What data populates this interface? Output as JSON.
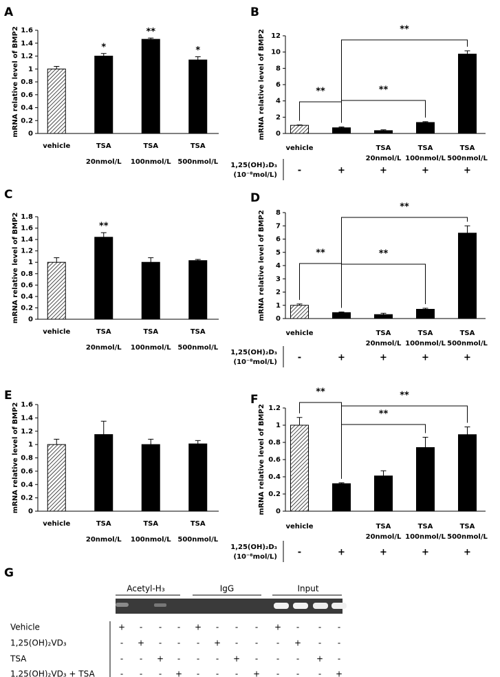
{
  "chart_data": [
    {
      "type": "bar",
      "panel": "A",
      "ylabel": "mRNA relative level of BMP2",
      "categories": [
        [
          "vehicle"
        ],
        [
          "TSA",
          "20nmol/L"
        ],
        [
          "TSA",
          "100nmol/L"
        ],
        [
          "TSA",
          "500nmol/L"
        ]
      ],
      "values": [
        1.0,
        1.2,
        1.46,
        1.14
      ],
      "errors": [
        0.04,
        0.04,
        0.02,
        0.05
      ],
      "significance": [
        null,
        "*",
        "**",
        "*"
      ],
      "ylim": [
        0,
        1.6
      ],
      "yticks": [
        0,
        0.2,
        0.4,
        0.6,
        0.8,
        1,
        1.2,
        1.4,
        1.6
      ]
    },
    {
      "type": "bar",
      "panel": "B",
      "ylabel": "mRNA relative level of BMP2",
      "categories": [
        [
          "vehicle"
        ],
        null,
        [
          "TSA",
          "20nmol/L"
        ],
        [
          "TSA",
          "100nmol/L"
        ],
        [
          "TSA",
          "500nmol/L"
        ]
      ],
      "values": [
        1.0,
        0.7,
        0.35,
        1.35,
        9.75
      ],
      "errors": [
        0.05,
        0.1,
        0.1,
        0.1,
        0.4
      ],
      "comparisons": [
        "**",
        "**",
        "**"
      ],
      "treatment": {
        "label": [
          "1,25(OH)₂D₃",
          "(10⁻⁸mol/L)"
        ],
        "signs": [
          "-",
          "+",
          "+",
          "+",
          "+"
        ]
      },
      "ylim": [
        0,
        12
      ],
      "yticks": [
        0,
        2,
        4,
        6,
        8,
        10,
        12
      ]
    },
    {
      "type": "bar",
      "panel": "C",
      "ylabel": "mRNA relative level of BMP2",
      "categories": [
        [
          "vehicle"
        ],
        [
          "TSA",
          "20nmol/L"
        ],
        [
          "TSA",
          "100nmol/L"
        ],
        [
          "TSA",
          "500nmol/L"
        ]
      ],
      "values": [
        1.0,
        1.44,
        1.0,
        1.03
      ],
      "errors": [
        0.08,
        0.08,
        0.08,
        0.02
      ],
      "significance": [
        null,
        "**",
        null,
        null
      ],
      "ylim": [
        0,
        1.8
      ],
      "yticks": [
        0,
        0.2,
        0.4,
        0.6,
        0.8,
        1,
        1.2,
        1.4,
        1.6,
        1.8
      ]
    },
    {
      "type": "bar",
      "panel": "D",
      "ylabel": "mRNA relative level of BMP2",
      "categories": [
        [
          "vehicle"
        ],
        null,
        [
          "TSA",
          "20nmol/L"
        ],
        [
          "TSA",
          "100nmol/L"
        ],
        [
          "TSA",
          "500nmol/L"
        ]
      ],
      "values": [
        1.0,
        0.45,
        0.3,
        0.7,
        6.45
      ],
      "errors": [
        0.1,
        0.05,
        0.1,
        0.08,
        0.55
      ],
      "comparisons": [
        "**",
        "**",
        "**"
      ],
      "treatment": {
        "label": [
          "1,25(OH)₂D₃",
          "(10⁻⁸mol/L)"
        ],
        "signs": [
          "-",
          "+",
          "+",
          "+",
          "+"
        ]
      },
      "ylim": [
        0,
        8
      ],
      "yticks": [
        0,
        1,
        2,
        3,
        4,
        5,
        6,
        7,
        8
      ]
    },
    {
      "type": "bar",
      "panel": "E",
      "ylabel": "mRNA relative level of BMP2",
      "categories": [
        [
          "vehicle"
        ],
        [
          "TSA",
          "20nmol/L"
        ],
        [
          "TSA",
          "100nmol/L"
        ],
        [
          "TSA",
          "500nmol/L"
        ]
      ],
      "values": [
        1.0,
        1.15,
        1.0,
        1.01
      ],
      "errors": [
        0.08,
        0.2,
        0.08,
        0.05
      ],
      "ylim": [
        0,
        1.6
      ],
      "yticks": [
        0,
        0.2,
        0.4,
        0.6,
        0.8,
        1,
        1.2,
        1.4,
        1.6
      ]
    },
    {
      "type": "bar",
      "panel": "F",
      "ylabel": "mRNA relative level of BMP2",
      "categories": [
        [
          "vehicle"
        ],
        null,
        [
          "TSA",
          "20nmol/L"
        ],
        [
          "TSA",
          "100nmol/L"
        ],
        [
          "TSA",
          "500nmol/L"
        ]
      ],
      "values": [
        1.0,
        0.32,
        0.41,
        0.74,
        0.89
      ],
      "errors": [
        0.09,
        0.01,
        0.06,
        0.12,
        0.09
      ],
      "comparisons": [
        "**",
        "**",
        "**"
      ],
      "treatment": {
        "label": [
          "1,25(OH)₂D₃",
          "(10⁻⁸mol/L)"
        ],
        "signs": [
          "-",
          "+",
          "+",
          "+",
          "+"
        ]
      },
      "ylim": [
        0,
        1.2
      ],
      "yticks": [
        0,
        0.2,
        0.4,
        0.6,
        0.8,
        1,
        1.2
      ]
    }
  ],
  "gel": {
    "panel": "G",
    "lane_groups": [
      "Acetyl-H₃",
      "IgG",
      "Input"
    ],
    "rows": [
      {
        "label": "Vehicle",
        "signs": [
          "+",
          "-",
          "-",
          "-",
          "+",
          "-",
          "-",
          "-",
          "+",
          "-",
          "-",
          "-"
        ]
      },
      {
        "label": "1,25(OH)₂VD₃",
        "signs": [
          "-",
          "+",
          "-",
          "-",
          "-",
          "+",
          "-",
          "-",
          "-",
          "+",
          "-",
          "-"
        ]
      },
      {
        "label": "TSA",
        "signs": [
          "-",
          "-",
          "+",
          "-",
          "-",
          "-",
          "+",
          "-",
          "-",
          "-",
          "+",
          "-"
        ]
      },
      {
        "label": "1,25(OH)₂VD₃ + TSA",
        "signs": [
          "-",
          "-",
          "-",
          "+",
          "-",
          "-",
          "-",
          "+",
          "-",
          "-",
          "-",
          "+"
        ]
      }
    ]
  }
}
